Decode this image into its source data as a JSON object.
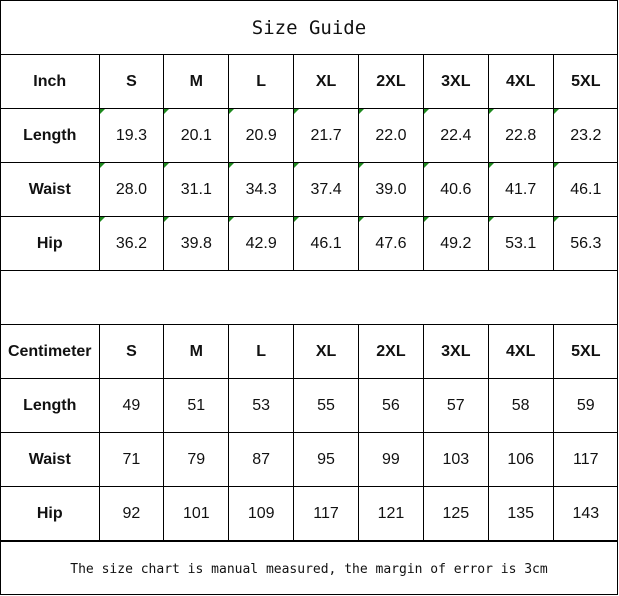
{
  "title": "Size Guide",
  "sizes": [
    "S",
    "M",
    "L",
    "XL",
    "2XL",
    "3XL",
    "4XL",
    "5XL"
  ],
  "inch": {
    "header": "Inch",
    "rows": [
      {
        "label": "Length",
        "values": [
          "19.3",
          "20.1",
          "20.9",
          "21.7",
          "22.0",
          "22.4",
          "22.8",
          "23.2"
        ]
      },
      {
        "label": "Waist",
        "values": [
          "28.0",
          "31.1",
          "34.3",
          "37.4",
          "39.0",
          "40.6",
          "41.7",
          "46.1"
        ]
      },
      {
        "label": "Hip",
        "values": [
          "36.2",
          "39.8",
          "42.9",
          "46.1",
          "47.6",
          "49.2",
          "53.1",
          "56.3"
        ]
      }
    ]
  },
  "centimeter": {
    "header": "Centimeter",
    "rows": [
      {
        "label": "Length",
        "values": [
          "49",
          "51",
          "53",
          "55",
          "56",
          "57",
          "58",
          "59"
        ]
      },
      {
        "label": "Waist",
        "values": [
          "71",
          "79",
          "87",
          "95",
          "99",
          "103",
          "106",
          "117"
        ]
      },
      {
        "label": "Hip",
        "values": [
          "92",
          "101",
          "109",
          "117",
          "121",
          "125",
          "135",
          "143"
        ]
      }
    ]
  },
  "note": "The size chart is manual measured, the margin of error is 3cm",
  "colors": {
    "error_marker": "#1e8a1e"
  }
}
